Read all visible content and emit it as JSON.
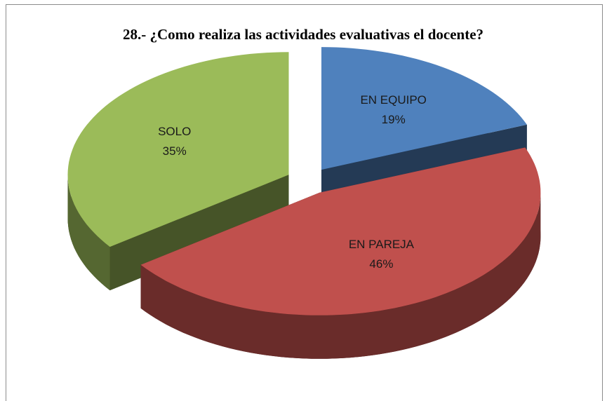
{
  "chart_data": {
    "type": "pie",
    "title": "28.- ¿Como realiza  las actividades evaluativas el docente?",
    "categories": [
      "EN EQUIPO",
      "EN PAREJA",
      "SOLO"
    ],
    "values": [
      19,
      46,
      35
    ],
    "value_labels": [
      "19%",
      "46%",
      "35%"
    ],
    "colors": [
      "#4f81bd",
      "#c0504d",
      "#9bbb59"
    ]
  }
}
